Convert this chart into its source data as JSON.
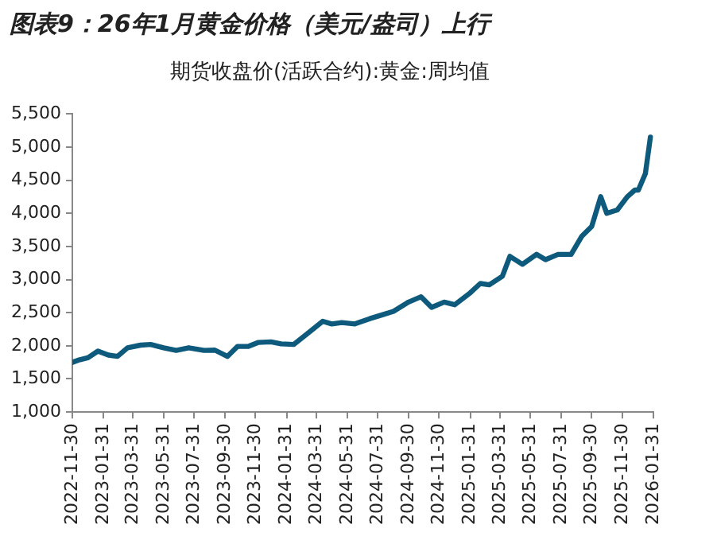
{
  "chart_data": {
    "type": "line",
    "title": "图表9：26年1月黄金价格（美元/盎司）上行",
    "subtitle": "期货收盘价(活跃合约):黄金:周均值",
    "x": [
      "2022-11-30",
      "2022-12-15",
      "2022-12-31",
      "2023-01-20",
      "2023-02-10",
      "2023-02-28",
      "2023-03-20",
      "2023-04-15",
      "2023-05-05",
      "2023-05-31",
      "2023-06-25",
      "2023-07-20",
      "2023-08-20",
      "2023-09-10",
      "2023-10-05",
      "2023-10-25",
      "2023-11-15",
      "2023-12-05",
      "2023-12-31",
      "2024-01-20",
      "2024-02-14",
      "2024-03-10",
      "2024-04-12",
      "2024-04-30",
      "2024-05-20",
      "2024-06-15",
      "2024-07-15",
      "2024-08-10",
      "2024-08-31",
      "2024-09-30",
      "2024-10-25",
      "2024-11-15",
      "2024-12-10",
      "2024-12-31",
      "2025-01-31",
      "2025-02-20",
      "2025-03-10",
      "2025-04-05",
      "2025-04-20",
      "2025-05-15",
      "2025-06-12",
      "2025-06-30",
      "2025-07-25",
      "2025-08-20",
      "2025-09-10",
      "2025-09-30",
      "2025-10-18",
      "2025-10-30",
      "2025-11-20",
      "2025-12-10",
      "2025-12-25",
      "2026-01-01",
      "2026-01-15",
      "2026-01-25"
    ],
    "series": [
      {
        "color": "#0e5a7c",
        "values": [
          1750,
          1790,
          1820,
          1920,
          1860,
          1840,
          1970,
          2010,
          2020,
          1970,
          1930,
          1970,
          1930,
          1935,
          1840,
          1990,
          1990,
          2050,
          2060,
          2030,
          2020,
          2170,
          2370,
          2330,
          2350,
          2330,
          2410,
          2470,
          2520,
          2660,
          2740,
          2580,
          2660,
          2620,
          2800,
          2940,
          2920,
          3050,
          3350,
          3230,
          3380,
          3300,
          3380,
          3380,
          3650,
          3800,
          4250,
          4000,
          4050,
          4250,
          4350,
          4350,
          4600,
          5150
        ]
      }
    ],
    "xlim": [
      "2022-11-30",
      "2026-01-31"
    ],
    "xticks": [
      "2022-11-30",
      "2023-01-31",
      "2023-03-31",
      "2023-05-31",
      "2023-07-31",
      "2023-09-30",
      "2023-11-30",
      "2024-01-31",
      "2024-03-31",
      "2024-05-31",
      "2024-07-31",
      "2024-09-30",
      "2024-11-30",
      "2025-01-31",
      "2025-03-31",
      "2025-05-31",
      "2025-07-31",
      "2025-09-30",
      "2025-11-30",
      "2026-01-31"
    ],
    "ylim": [
      1000,
      5500
    ],
    "yticks": [
      {
        "value": 1000,
        "label": "1,000"
      },
      {
        "value": 1500,
        "label": "1,500"
      },
      {
        "value": 2000,
        "label": "2,000"
      },
      {
        "value": 2500,
        "label": "2,500"
      },
      {
        "value": 3000,
        "label": "3,000"
      },
      {
        "value": 3500,
        "label": "3,500"
      },
      {
        "value": 4000,
        "label": "4,000"
      },
      {
        "value": 4500,
        "label": "4,500"
      },
      {
        "value": 5000,
        "label": "5,000"
      },
      {
        "value": 5500,
        "label": "5,500"
      }
    ],
    "grid": false,
    "legend": false,
    "marker": "none",
    "line_style": "solid"
  }
}
